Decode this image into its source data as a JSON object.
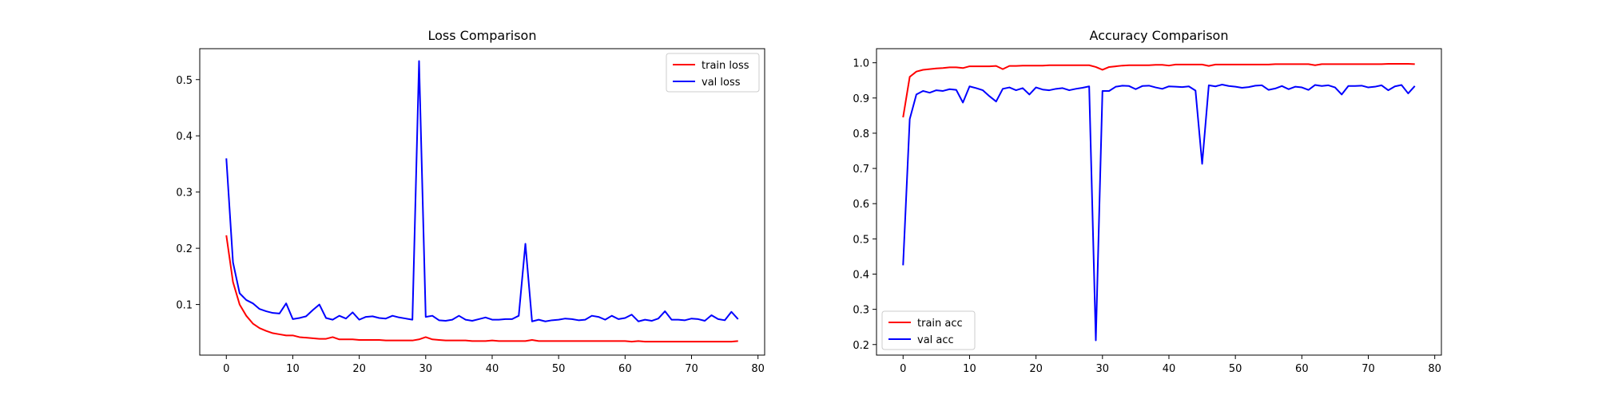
{
  "chart_data": [
    {
      "type": "line",
      "title": "Loss Comparison",
      "xlabel": "",
      "ylabel": "",
      "xlim": [
        -4,
        81
      ],
      "ylim": [
        0.01,
        0.555
      ],
      "xticks": [
        0,
        10,
        20,
        30,
        40,
        50,
        60,
        70,
        80
      ],
      "yticks": [
        0.1,
        0.2,
        0.3,
        0.4,
        0.5
      ],
      "legend": "top-right",
      "grid": false,
      "x": [
        0,
        1,
        2,
        3,
        4,
        5,
        6,
        7,
        8,
        9,
        10,
        11,
        12,
        13,
        14,
        15,
        16,
        17,
        18,
        19,
        20,
        21,
        22,
        23,
        24,
        25,
        26,
        27,
        28,
        29,
        30,
        31,
        32,
        33,
        34,
        35,
        36,
        37,
        38,
        39,
        40,
        41,
        42,
        43,
        44,
        45,
        46,
        47,
        48,
        49,
        50,
        51,
        52,
        53,
        54,
        55,
        56,
        57,
        58,
        59,
        60,
        61,
        62,
        63,
        64,
        65,
        66,
        67,
        68,
        69,
        70,
        71,
        72,
        73,
        74,
        75,
        76,
        77
      ],
      "series": [
        {
          "name": "train loss",
          "color": "#ff0000",
          "values": [
            0.223,
            0.14,
            0.1,
            0.08,
            0.066,
            0.058,
            0.053,
            0.049,
            0.047,
            0.045,
            0.045,
            0.042,
            0.041,
            0.04,
            0.039,
            0.039,
            0.042,
            0.038,
            0.038,
            0.038,
            0.037,
            0.037,
            0.037,
            0.037,
            0.036,
            0.036,
            0.036,
            0.036,
            0.036,
            0.038,
            0.042,
            0.038,
            0.037,
            0.036,
            0.036,
            0.036,
            0.036,
            0.035,
            0.035,
            0.035,
            0.036,
            0.035,
            0.035,
            0.035,
            0.035,
            0.035,
            0.037,
            0.035,
            0.035,
            0.035,
            0.035,
            0.035,
            0.035,
            0.035,
            0.035,
            0.035,
            0.035,
            0.035,
            0.035,
            0.035,
            0.035,
            0.034,
            0.035,
            0.034,
            0.034,
            0.034,
            0.034,
            0.034,
            0.034,
            0.034,
            0.034,
            0.034,
            0.034,
            0.034,
            0.034,
            0.034,
            0.034,
            0.035
          ]
        },
        {
          "name": "val loss",
          "color": "#0000ff",
          "values": [
            0.36,
            0.175,
            0.12,
            0.108,
            0.102,
            0.092,
            0.088,
            0.085,
            0.084,
            0.102,
            0.074,
            0.076,
            0.079,
            0.09,
            0.1,
            0.076,
            0.073,
            0.08,
            0.075,
            0.086,
            0.073,
            0.078,
            0.079,
            0.076,
            0.075,
            0.08,
            0.077,
            0.075,
            0.073,
            0.533,
            0.078,
            0.08,
            0.072,
            0.071,
            0.073,
            0.08,
            0.073,
            0.071,
            0.074,
            0.077,
            0.073,
            0.073,
            0.074,
            0.074,
            0.08,
            0.208,
            0.07,
            0.073,
            0.07,
            0.072,
            0.073,
            0.075,
            0.074,
            0.072,
            0.073,
            0.08,
            0.078,
            0.073,
            0.08,
            0.074,
            0.076,
            0.082,
            0.07,
            0.073,
            0.071,
            0.075,
            0.088,
            0.073,
            0.073,
            0.072,
            0.075,
            0.074,
            0.071,
            0.081,
            0.074,
            0.072,
            0.087,
            0.074
          ]
        }
      ]
    },
    {
      "type": "line",
      "title": "Accuracy Comparison",
      "xlabel": "",
      "ylabel": "",
      "xlim": [
        -4,
        81
      ],
      "ylim": [
        0.17,
        1.04
      ],
      "xticks": [
        0,
        10,
        20,
        30,
        40,
        50,
        60,
        70,
        80
      ],
      "yticks": [
        0.2,
        0.3,
        0.4,
        0.5,
        0.6,
        0.7,
        0.8,
        0.9,
        1.0
      ],
      "legend": "bottom-left",
      "grid": false,
      "x": [
        0,
        1,
        2,
        3,
        4,
        5,
        6,
        7,
        8,
        9,
        10,
        11,
        12,
        13,
        14,
        15,
        16,
        17,
        18,
        19,
        20,
        21,
        22,
        23,
        24,
        25,
        26,
        27,
        28,
        29,
        30,
        31,
        32,
        33,
        34,
        35,
        36,
        37,
        38,
        39,
        40,
        41,
        42,
        43,
        44,
        45,
        46,
        47,
        48,
        49,
        50,
        51,
        52,
        53,
        54,
        55,
        56,
        57,
        58,
        59,
        60,
        61,
        62,
        63,
        64,
        65,
        66,
        67,
        68,
        69,
        70,
        71,
        72,
        73,
        74,
        75,
        76,
        77
      ],
      "series": [
        {
          "name": "train acc",
          "color": "#ff0000",
          "values": [
            0.845,
            0.96,
            0.975,
            0.98,
            0.982,
            0.984,
            0.985,
            0.987,
            0.987,
            0.985,
            0.99,
            0.99,
            0.99,
            0.99,
            0.991,
            0.982,
            0.991,
            0.991,
            0.992,
            0.992,
            0.992,
            0.992,
            0.993,
            0.993,
            0.993,
            0.993,
            0.993,
            0.993,
            0.993,
            0.988,
            0.98,
            0.988,
            0.99,
            0.992,
            0.993,
            0.993,
            0.993,
            0.993,
            0.994,
            0.994,
            0.992,
            0.995,
            0.995,
            0.995,
            0.995,
            0.995,
            0.991,
            0.995,
            0.995,
            0.995,
            0.995,
            0.995,
            0.995,
            0.995,
            0.995,
            0.995,
            0.996,
            0.996,
            0.996,
            0.996,
            0.996,
            0.996,
            0.993,
            0.996,
            0.996,
            0.996,
            0.996,
            0.996,
            0.996,
            0.996,
            0.996,
            0.996,
            0.996,
            0.997,
            0.997,
            0.997,
            0.997,
            0.996
          ]
        },
        {
          "name": "val acc",
          "color": "#0000ff",
          "values": [
            0.425,
            0.84,
            0.91,
            0.92,
            0.915,
            0.922,
            0.92,
            0.925,
            0.923,
            0.887,
            0.933,
            0.928,
            0.922,
            0.905,
            0.89,
            0.926,
            0.93,
            0.922,
            0.928,
            0.91,
            0.93,
            0.924,
            0.922,
            0.926,
            0.928,
            0.922,
            0.926,
            0.929,
            0.933,
            0.212,
            0.92,
            0.92,
            0.932,
            0.935,
            0.934,
            0.925,
            0.934,
            0.935,
            0.93,
            0.926,
            0.933,
            0.932,
            0.931,
            0.933,
            0.921,
            0.713,
            0.936,
            0.933,
            0.938,
            0.934,
            0.932,
            0.929,
            0.931,
            0.935,
            0.936,
            0.923,
            0.927,
            0.934,
            0.925,
            0.932,
            0.93,
            0.923,
            0.937,
            0.934,
            0.936,
            0.93,
            0.91,
            0.934,
            0.934,
            0.935,
            0.93,
            0.932,
            0.936,
            0.922,
            0.933,
            0.937,
            0.913,
            0.934
          ]
        }
      ]
    }
  ]
}
